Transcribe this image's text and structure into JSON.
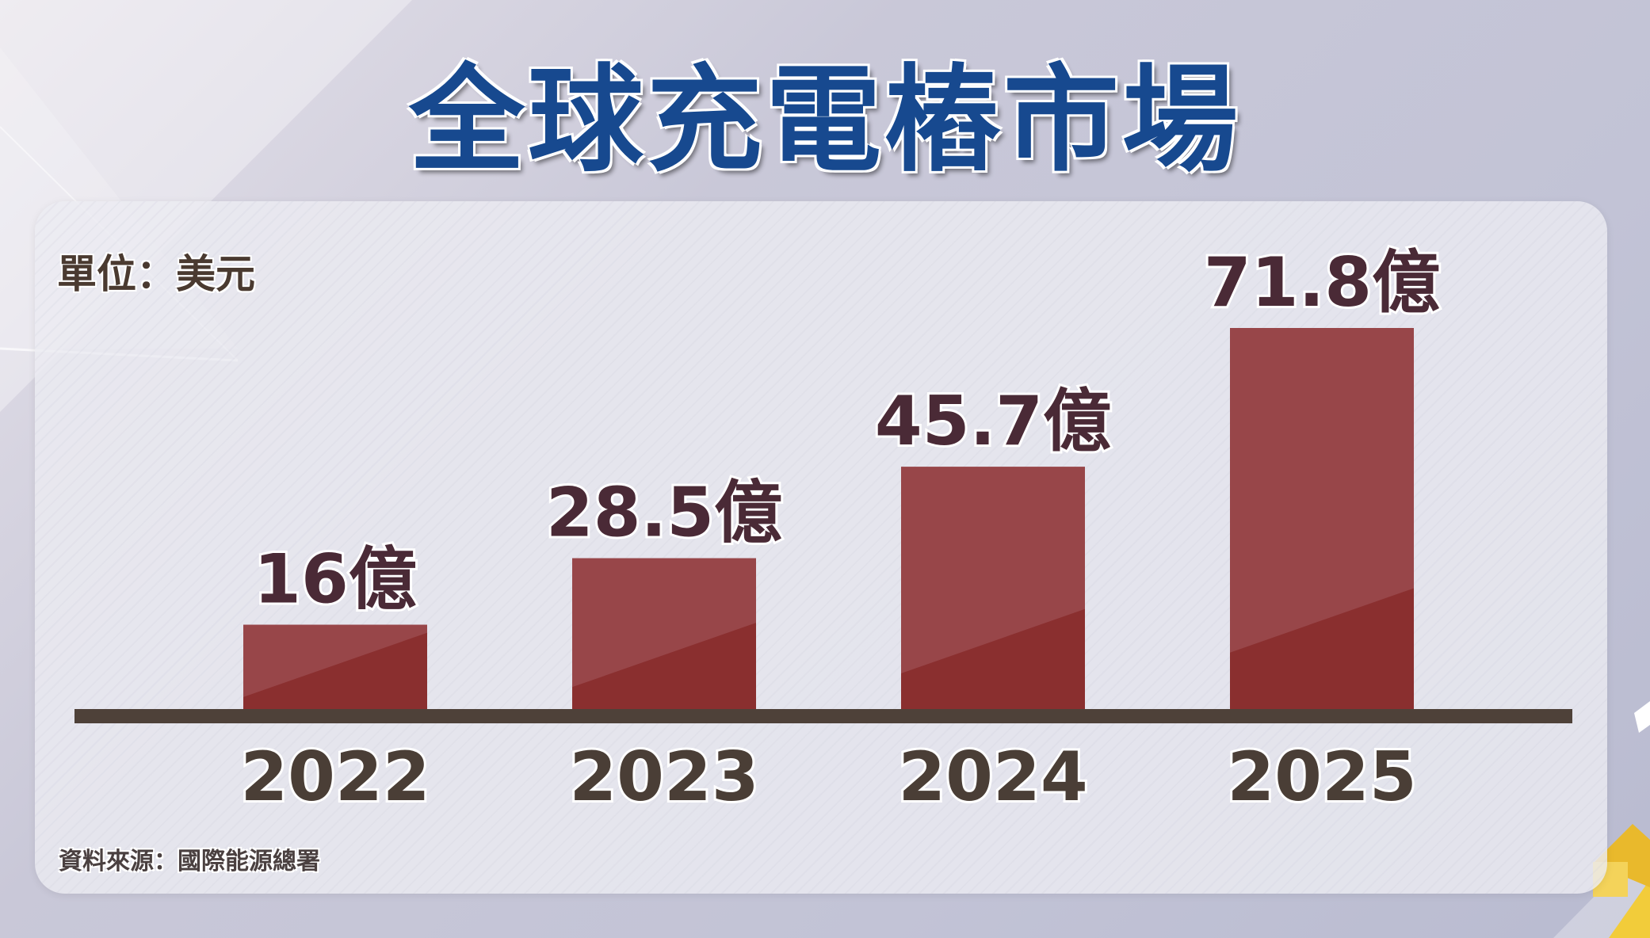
{
  "title": "全球充電樁市場",
  "unit_label": "單位：美元",
  "source_label": "資料來源：國際能源總署",
  "colors": {
    "bar": "#8a2f2f",
    "bar_highlight": "#9a4a4e",
    "axis": "#4e4139",
    "title": "#17498f",
    "value_text": "#4a2a36",
    "year_text": "#4a3e36"
  },
  "chart_data": {
    "type": "bar",
    "title": "全球充電樁市場",
    "categories": [
      "2022",
      "2023",
      "2024",
      "2025"
    ],
    "values": [
      16,
      28.5,
      45.7,
      71.8
    ],
    "value_labels": [
      "16億",
      "28.5億",
      "45.7億",
      "71.8億"
    ],
    "unit": "美元",
    "xlabel": "",
    "ylabel": "",
    "ylim": [
      0,
      71.8
    ],
    "grid": false,
    "legend": "none"
  }
}
